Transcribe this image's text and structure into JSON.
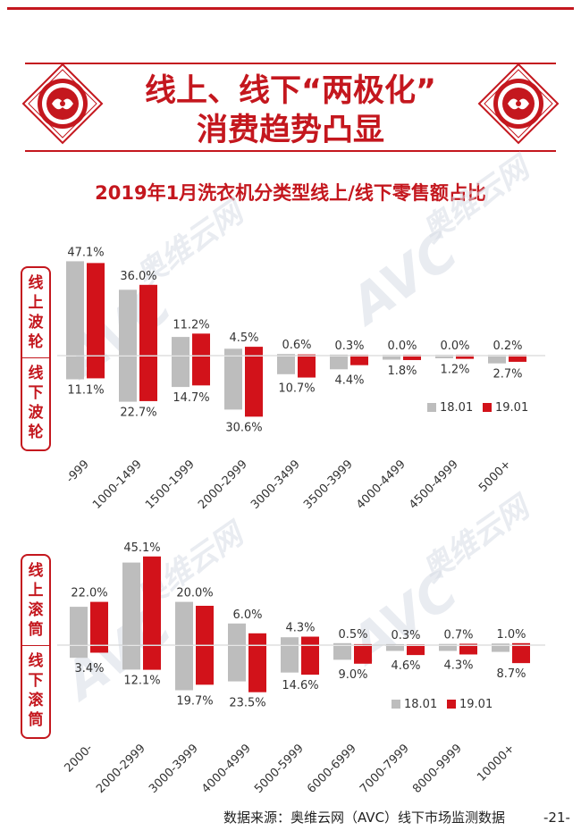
{
  "header": {
    "title_line1": "线上、线下“两极化”",
    "title_line2": "消费趋势凸显",
    "subtitle": "2019年1月洗衣机分类型线上/线下零售额占比"
  },
  "watermark": {
    "brand": "AVC",
    "cn": "奥维云网",
    "en": "ALL VIEW CLOUD"
  },
  "colors": {
    "accent": "#c4171e",
    "series_1801": "#bdbdbd",
    "series_1901": "#d2121a"
  },
  "chart_data": [
    {
      "type": "bar",
      "online_label": "线上波轮",
      "offline_label": "线下波轮",
      "categories": [
        "-999",
        "1000-1499",
        "1500-1999",
        "2000-2999",
        "3000-3499",
        "3500-3999",
        "4000-4499",
        "4500-4999",
        "5000+"
      ],
      "legend": [
        "18.01",
        "19.01"
      ],
      "online_1901": [
        47.1,
        36.0,
        11.2,
        4.5,
        0.6,
        0.3,
        0.0,
        0.0,
        0.2
      ],
      "online_1901_labels": [
        "47.1%",
        "36.0%",
        "11.2%",
        "4.5%",
        "0.6%",
        "0.3%",
        "0.0%",
        "0.0%",
        "0.2%"
      ],
      "online_1801": [
        48.0,
        33.5,
        9.5,
        3.5,
        0.8,
        0.5,
        0.1,
        0.1,
        0.3
      ],
      "offline_1901": [
        11.1,
        22.7,
        14.7,
        30.6,
        10.7,
        4.4,
        1.8,
        1.2,
        2.7
      ],
      "offline_1901_labels": [
        "11.1%",
        "22.7%",
        "14.7%",
        "30.6%",
        "10.7%",
        "4.4%",
        "1.8%",
        "1.2%",
        "2.7%"
      ],
      "offline_1801": [
        11.6,
        23.0,
        15.5,
        27.0,
        9.0,
        6.5,
        1.6,
        0.9,
        3.5
      ]
    },
    {
      "type": "bar",
      "online_label": "线上滚筒",
      "offline_label": "线下滚筒",
      "categories": [
        "2000-",
        "2000-2999",
        "3000-3999",
        "4000-4999",
        "5000-5999",
        "6000-6999",
        "7000-7999",
        "8000-9999",
        "10000+"
      ],
      "legend": [
        "18.01",
        "19.01"
      ],
      "online_1901": [
        22.0,
        45.1,
        20.0,
        6.0,
        4.3,
        0.5,
        0.3,
        0.7,
        1.0
      ],
      "online_1901_labels": [
        "22.0%",
        "45.1%",
        "20.0%",
        "6.0%",
        "4.3%",
        "0.5%",
        "0.3%",
        "0.7%",
        "1.0%"
      ],
      "online_1801": [
        19.5,
        42.0,
        22.0,
        11.0,
        4.0,
        1.0,
        0.5,
        0.6,
        0.8
      ],
      "offline_1901": [
        3.4,
        12.1,
        19.7,
        23.5,
        14.6,
        9.0,
        4.6,
        4.3,
        8.7
      ],
      "offline_1901_labels": [
        "3.4%",
        "12.1%",
        "19.7%",
        "23.5%",
        "14.6%",
        "9.0%",
        "4.6%",
        "4.3%",
        "8.7%"
      ],
      "offline_1801": [
        6.0,
        12.0,
        22.5,
        18.0,
        13.5,
        7.0,
        2.5,
        2.5,
        3.0
      ]
    }
  ],
  "footer": {
    "source": "数据来源：奥维云网（AVC）线下市场监测数据",
    "page": "-21-"
  }
}
